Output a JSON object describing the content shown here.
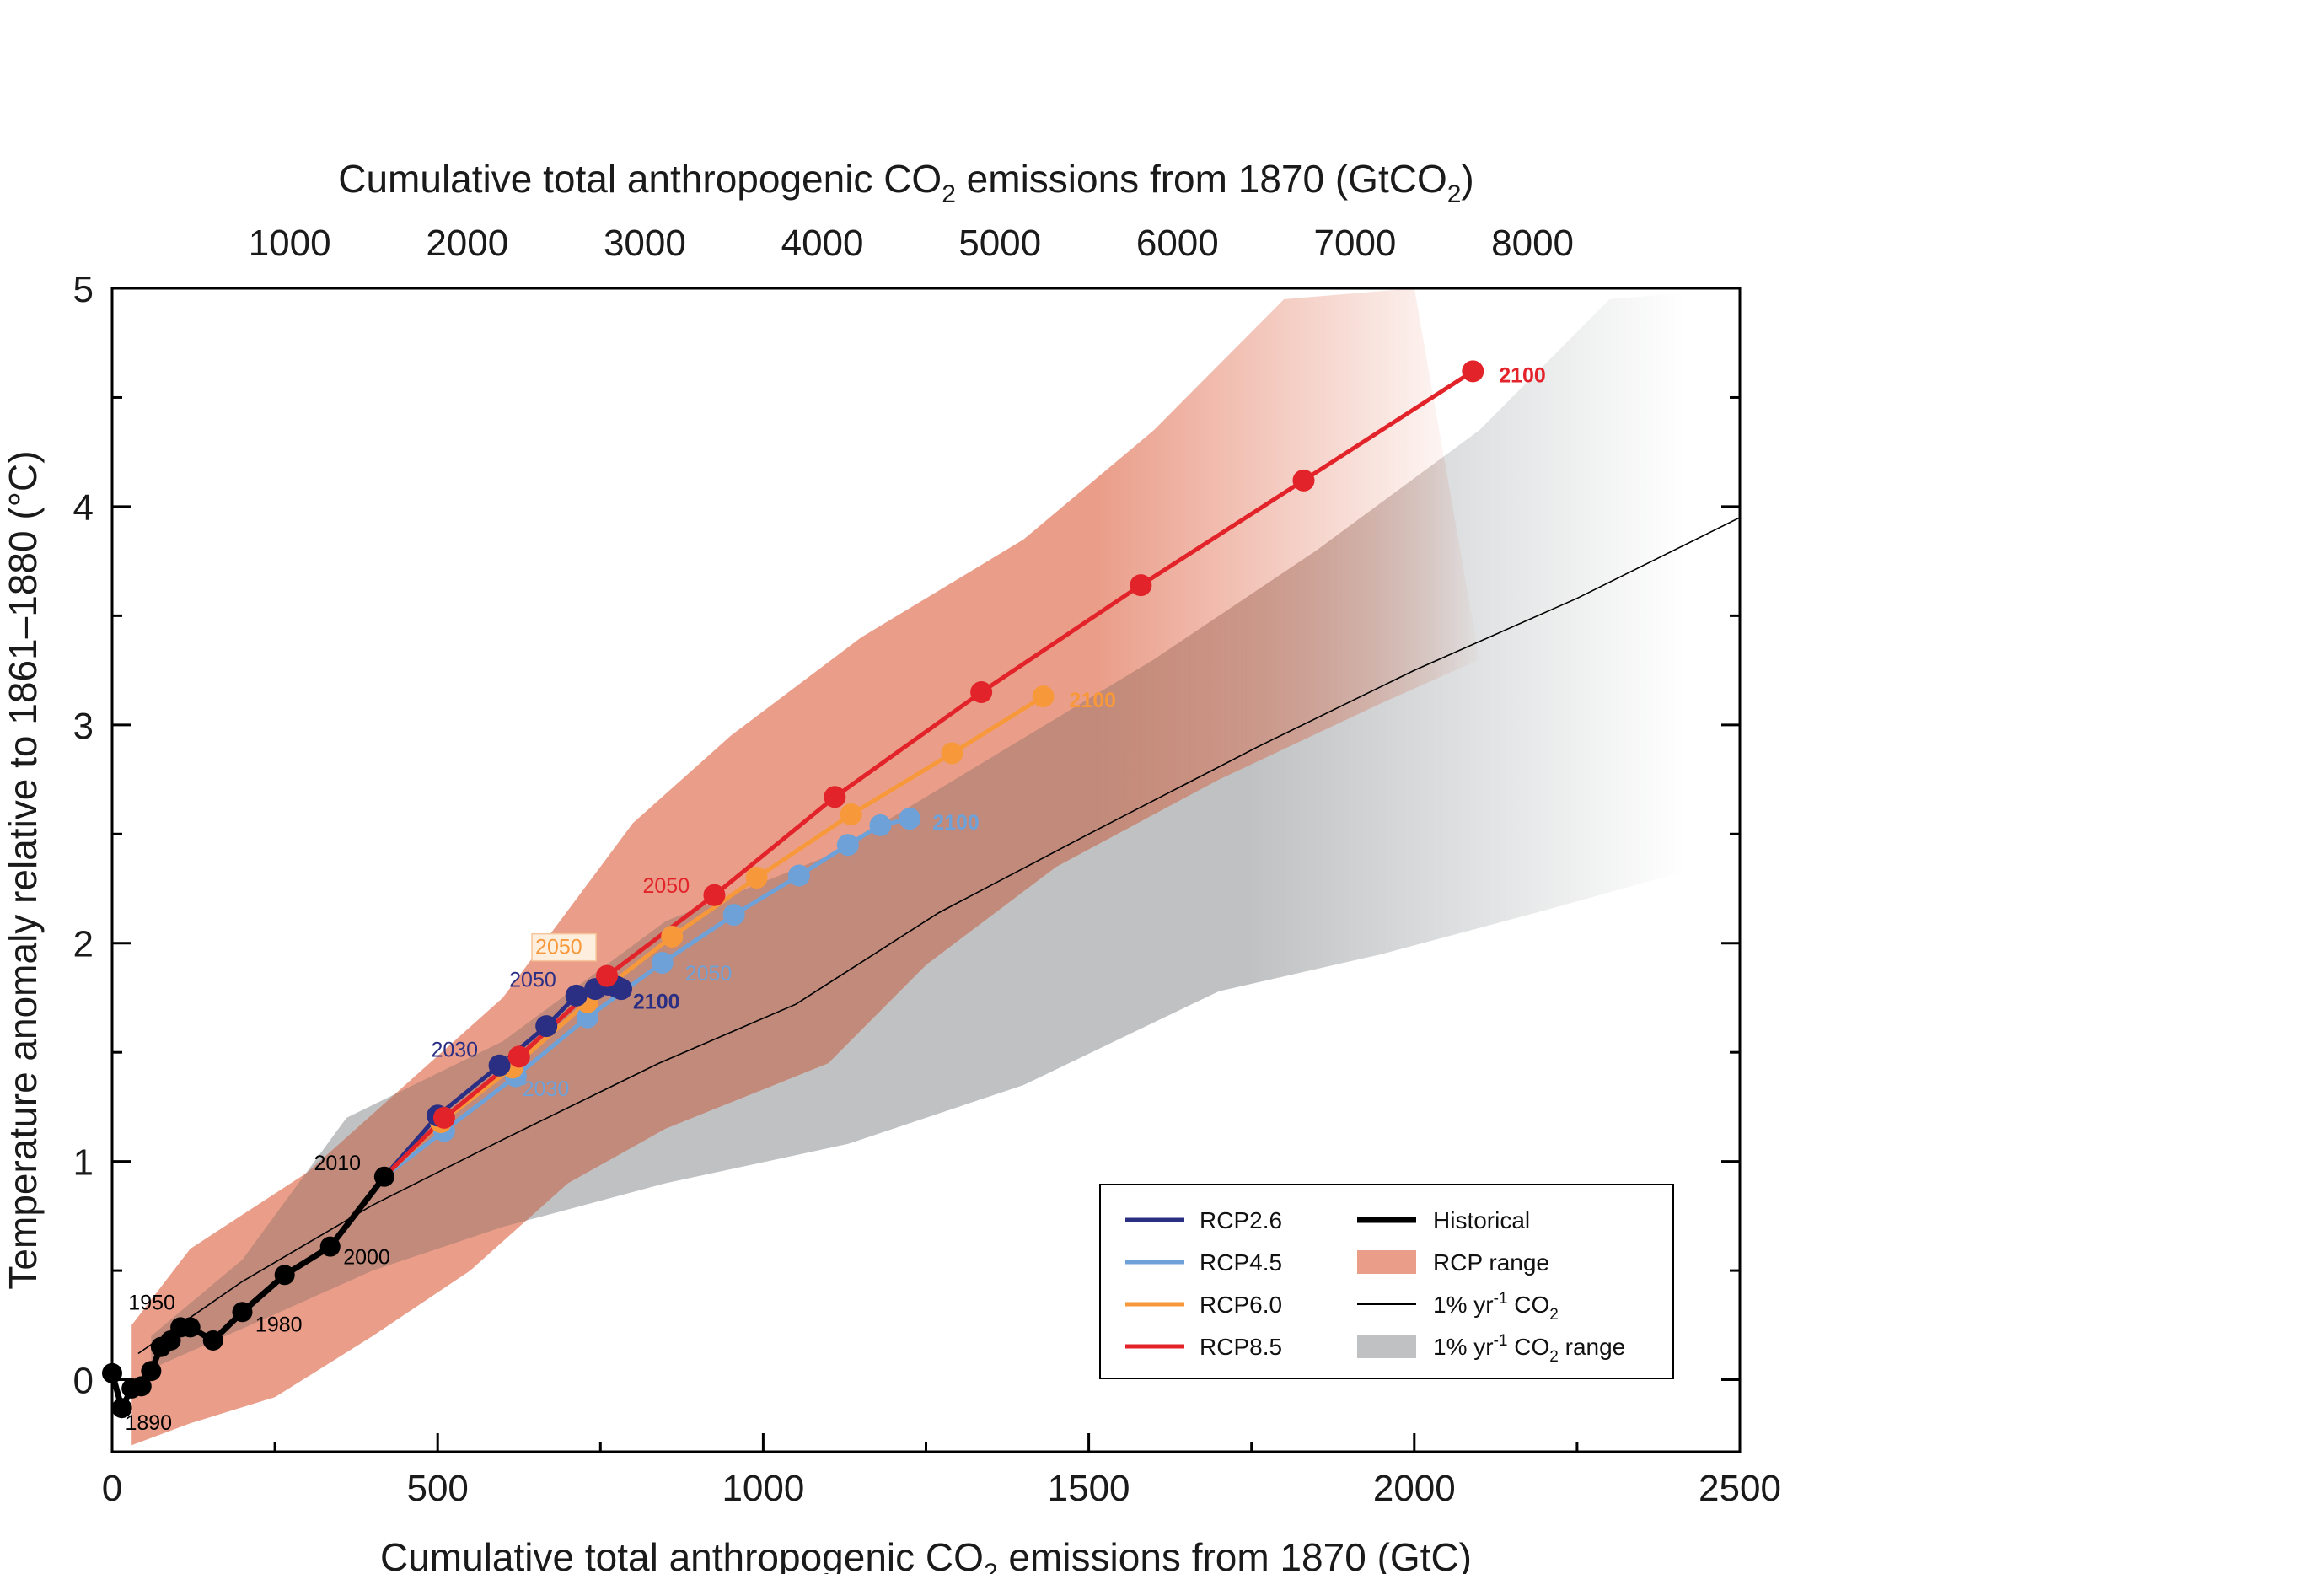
{
  "chart_data": {
    "type": "line",
    "x_label": "Cumulative total anthropogenic CO2 emissions from 1870 (GtC)",
    "x_label_parts": {
      "pre": "Cumulative total anthropogenic CO",
      "sub": "2",
      "post": " emissions from 1870 (GtC)"
    },
    "x_top_label_parts": {
      "pre": "Cumulative total anthropogenic CO",
      "sub": "2",
      "mid": " emissions from 1870 (GtCO",
      "sub2": "2",
      "post": ")"
    },
    "y_label": "Temperature anomaly relative to 1861–1880 (°C)",
    "x_range": [
      0,
      2500
    ],
    "y_range": [
      -0.33,
      5
    ],
    "x_ticks": [
      0,
      500,
      1000,
      1500,
      2000,
      2500
    ],
    "x_top_ticks": [
      1000,
      2000,
      3000,
      4000,
      5000,
      6000,
      7000,
      8000
    ],
    "gtco2_per_gtc": 3.667,
    "y_ticks": [
      0,
      1,
      2,
      3,
      4,
      5
    ],
    "colors": {
      "historical": "#000000",
      "rcp26": "#2b2f83",
      "rcp45": "#6fa1d9",
      "rcp60": "#f7993b",
      "rcp85": "#e3232a",
      "rcp_range": "#ea9d89",
      "onepct": "#000000",
      "onepct_range": "#bfc1c3",
      "overlap": "#c18a7a"
    },
    "historical": {
      "name": "Historical",
      "x": [
        0,
        15,
        30,
        45,
        60,
        75,
        90,
        105,
        120,
        155,
        200,
        265,
        335,
        418
      ],
      "y": [
        0.03,
        -0.13,
        -0.04,
        -0.03,
        0.04,
        0.15,
        0.18,
        0.24,
        0.24,
        0.18,
        0.31,
        0.48,
        0.61,
        0.93
      ]
    },
    "onepct_line": {
      "name": "1% yr-1 CO2",
      "x": [
        40,
        200,
        400,
        600,
        840,
        1050,
        1270,
        1500,
        1760,
        2000,
        2250,
        2500
      ],
      "y": [
        0.12,
        0.45,
        0.8,
        1.1,
        1.45,
        1.72,
        2.14,
        2.5,
        2.9,
        3.25,
        3.58,
        3.95
      ]
    },
    "rcp_range": {
      "name": "RCP range",
      "upper": {
        "x": [
          30,
          120,
          300,
          450,
          600,
          800,
          950,
          1150,
          1400,
          1600,
          1800,
          2000
        ],
        "y": [
          0.25,
          0.6,
          0.95,
          1.35,
          1.75,
          2.55,
          2.95,
          3.4,
          3.85,
          4.35,
          4.95,
          5.0
        ]
      },
      "lower": {
        "x": [
          30,
          120,
          250,
          400,
          550,
          700,
          850,
          1000,
          1100,
          1250,
          1450,
          1700,
          1950,
          2100
        ],
        "y": [
          -0.3,
          -0.2,
          -0.08,
          0.2,
          0.5,
          0.9,
          1.15,
          1.33,
          1.45,
          1.9,
          2.35,
          2.75,
          3.1,
          3.3
        ]
      }
    },
    "onepct_range": {
      "name": "1% yr-1 CO2 range",
      "upper": {
        "x": [
          60,
          200,
          360,
          600,
          850,
          1100,
          1350,
          1600,
          1850,
          2100,
          2300,
          2500
        ],
        "y": [
          0.2,
          0.55,
          1.2,
          1.55,
          2.1,
          2.4,
          2.85,
          3.3,
          3.8,
          4.35,
          4.95,
          5.0
        ]
      },
      "lower": {
        "x": [
          60,
          250,
          400,
          600,
          850,
          1130,
          1400,
          1700,
          1950,
          2200,
          2500
        ],
        "y": [
          0.05,
          0.3,
          0.5,
          0.7,
          0.9,
          1.08,
          1.35,
          1.78,
          1.95,
          2.15,
          2.4
        ]
      }
    },
    "series": [
      {
        "name": "RCP2.6",
        "color_key": "rcp26",
        "x": [
          418,
          500,
          595,
          667,
          713,
          742,
          762,
          775,
          782
        ],
        "y": [
          0.93,
          1.21,
          1.44,
          1.62,
          1.76,
          1.79,
          1.81,
          1.8,
          1.79
        ]
      },
      {
        "name": "RCP4.5",
        "color_key": "rcp45",
        "x": [
          418,
          510,
          620,
          730,
          845,
          955,
          1055,
          1130,
          1180,
          1225
        ],
        "y": [
          0.93,
          1.14,
          1.39,
          1.66,
          1.91,
          2.13,
          2.31,
          2.45,
          2.54,
          2.57
        ]
      },
      {
        "name": "RCP6.0",
        "color_key": "rcp60",
        "x": [
          418,
          505,
          615,
          730,
          860,
          990,
          1135,
          1290,
          1430
        ],
        "y": [
          0.93,
          1.18,
          1.43,
          1.73,
          2.03,
          2.3,
          2.59,
          2.87,
          3.13
        ]
      },
      {
        "name": "RCP8.5",
        "color_key": "rcp85",
        "x": [
          418,
          510,
          625,
          760,
          925,
          1110,
          1335,
          1580,
          1830,
          2090
        ],
        "y": [
          0.93,
          1.2,
          1.48,
          1.85,
          2.22,
          2.67,
          3.15,
          3.64,
          4.12,
          4.62
        ]
      }
    ],
    "year_labels": [
      {
        "text": "1890",
        "x": 20,
        "y": -0.23,
        "color_key": "historical",
        "bold": false,
        "anchor": "start"
      },
      {
        "text": "1950",
        "x": 25,
        "y": 0.32,
        "color_key": "historical",
        "bold": false,
        "anchor": "start"
      },
      {
        "text": "1980",
        "x": 220,
        "y": 0.22,
        "color_key": "historical",
        "bold": false,
        "anchor": "start"
      },
      {
        "text": "2000",
        "x": 355,
        "y": 0.53,
        "color_key": "historical",
        "bold": false,
        "anchor": "start"
      },
      {
        "text": "2010",
        "x": 310,
        "y": 0.96,
        "color_key": "historical",
        "bold": false,
        "anchor": "start"
      },
      {
        "text": "2030",
        "x": 490,
        "y": 1.48,
        "color_key": "rcp26",
        "bold": false,
        "anchor": "start"
      },
      {
        "text": "2050",
        "x": 610,
        "y": 1.8,
        "color_key": "rcp26",
        "bold": false,
        "anchor": "start"
      },
      {
        "text": "2100",
        "x": 800,
        "y": 1.7,
        "color_key": "rcp26",
        "bold": true,
        "anchor": "start"
      },
      {
        "text": "2030",
        "x": 630,
        "y": 1.3,
        "color_key": "rcp45",
        "bold": false,
        "anchor": "start"
      },
      {
        "text": "2050",
        "x": 880,
        "y": 1.83,
        "color_key": "rcp45",
        "bold": false,
        "anchor": "start"
      },
      {
        "text": "2100",
        "x": 1260,
        "y": 2.52,
        "color_key": "rcp45",
        "bold": true,
        "anchor": "start"
      },
      {
        "text": "2050",
        "x": 650,
        "y": 1.95,
        "color_key": "rcp60",
        "bold": false,
        "anchor": "start",
        "boxed": true
      },
      {
        "text": "2100",
        "x": 1470,
        "y": 3.08,
        "color_key": "rcp60",
        "bold": true,
        "anchor": "start"
      },
      {
        "text": "2050",
        "x": 815,
        "y": 2.23,
        "color_key": "rcp85",
        "bold": false,
        "anchor": "start"
      },
      {
        "text": "2100",
        "x": 2130,
        "y": 4.57,
        "color_key": "rcp85",
        "bold": true,
        "anchor": "start"
      }
    ],
    "legend": {
      "placement": "bottom-right",
      "left_items": [
        {
          "label": "RCP2.6",
          "color_key": "rcp26"
        },
        {
          "label": "RCP4.5",
          "color_key": "rcp45"
        },
        {
          "label": "RCP6.0",
          "color_key": "rcp60"
        },
        {
          "label": "RCP8.5",
          "color_key": "rcp85"
        }
      ],
      "right_items": [
        {
          "label": "Historical",
          "kind": "thick-line",
          "color_key": "historical"
        },
        {
          "label": "RCP range",
          "kind": "patch",
          "color_key": "rcp_range"
        },
        {
          "label": "1% yr-1 CO2",
          "kind": "thin-line",
          "color_key": "onepct",
          "parts": {
            "pre": "1% yr",
            "sup": "-1",
            "mid": " CO",
            "sub": "2",
            "post": ""
          }
        },
        {
          "label": "1% yr-1 CO2 range",
          "kind": "patch",
          "color_key": "onepct_range",
          "parts": {
            "pre": "1% yr",
            "sup": "-1",
            "mid": " CO",
            "sub": "2",
            "post": " range"
          }
        }
      ]
    }
  }
}
